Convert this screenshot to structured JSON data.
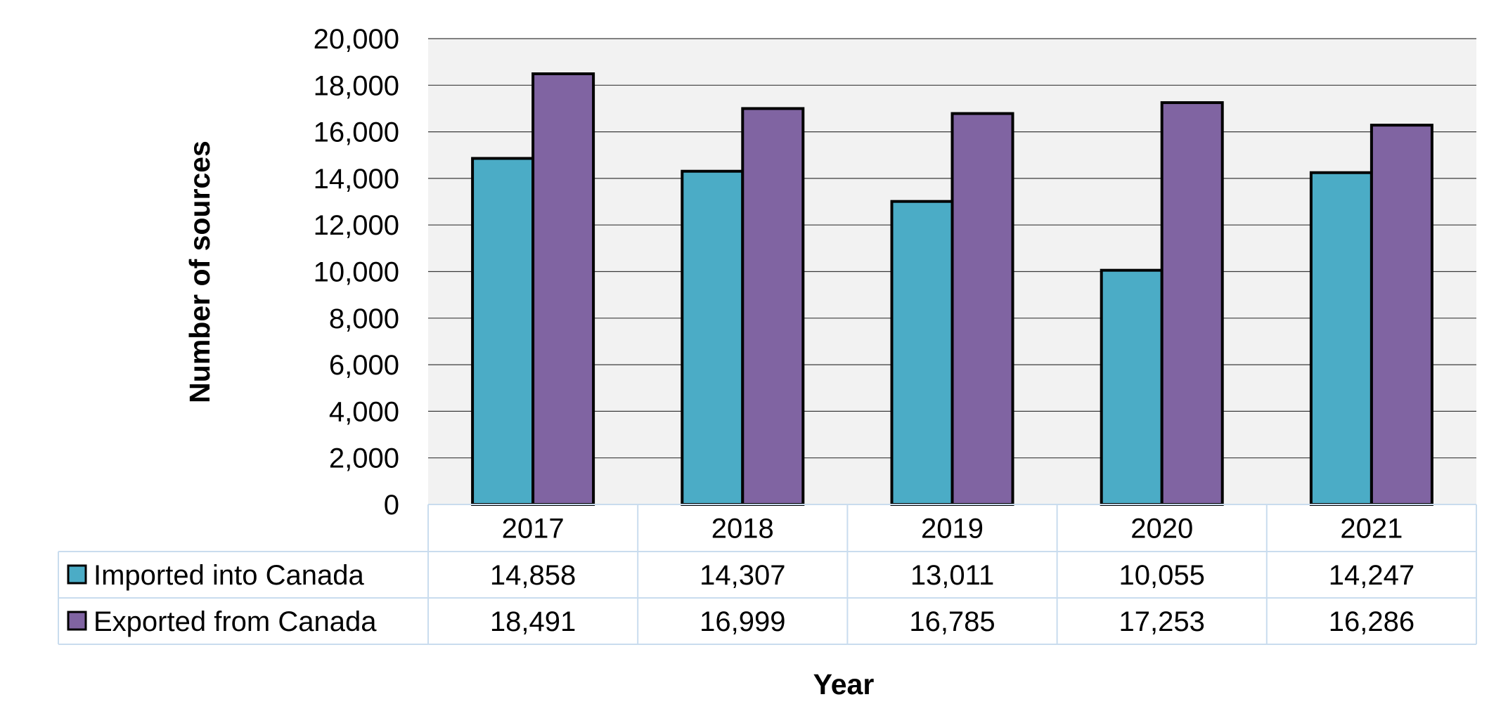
{
  "chart_data": {
    "type": "bar",
    "title": "",
    "xlabel": "Year",
    "ylabel": "Number of sources",
    "ylim": [
      0,
      20000
    ],
    "yticks": [
      0,
      2000,
      4000,
      6000,
      8000,
      10000,
      12000,
      14000,
      16000,
      18000,
      20000
    ],
    "ytick_labels": [
      "0",
      "2,000",
      "4,000",
      "6,000",
      "8,000",
      "10,000",
      "12,000",
      "14,000",
      "16,000",
      "18,000",
      "20,000"
    ],
    "categories": [
      "2017",
      "2018",
      "2019",
      "2020",
      "2021"
    ],
    "grid": true,
    "legend": "data-table",
    "series": [
      {
        "name": "Imported into Canada",
        "color": "#4bacc6",
        "values": [
          14858,
          14307,
          13011,
          10055,
          14247
        ],
        "value_labels": [
          "14,858",
          "14,307",
          "13,011",
          "10,055",
          "14,247"
        ]
      },
      {
        "name": "Exported from Canada",
        "color": "#8064a2",
        "values": [
          18491,
          16999,
          16785,
          17253,
          16286
        ],
        "value_labels": [
          "18,491",
          "16,999",
          "16,785",
          "17,253",
          "16,286"
        ]
      }
    ]
  }
}
